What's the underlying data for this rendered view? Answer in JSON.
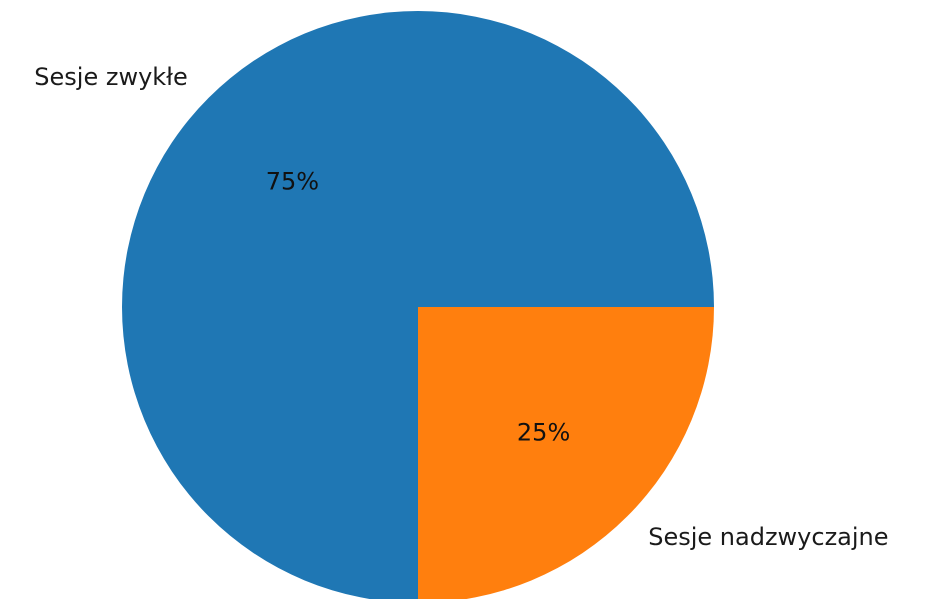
{
  "chart_data": {
    "type": "pie",
    "title": "",
    "start_angle": 0,
    "direction": "counterclockwise",
    "slices": [
      {
        "label": "Sesje zwykłe",
        "value": 75,
        "pct_label": "75%",
        "color": "#1f77b4"
      },
      {
        "label": "Sesje nadzwyczajne",
        "value": 25,
        "pct_label": "25%",
        "color": "#ff7f0e"
      }
    ]
  }
}
